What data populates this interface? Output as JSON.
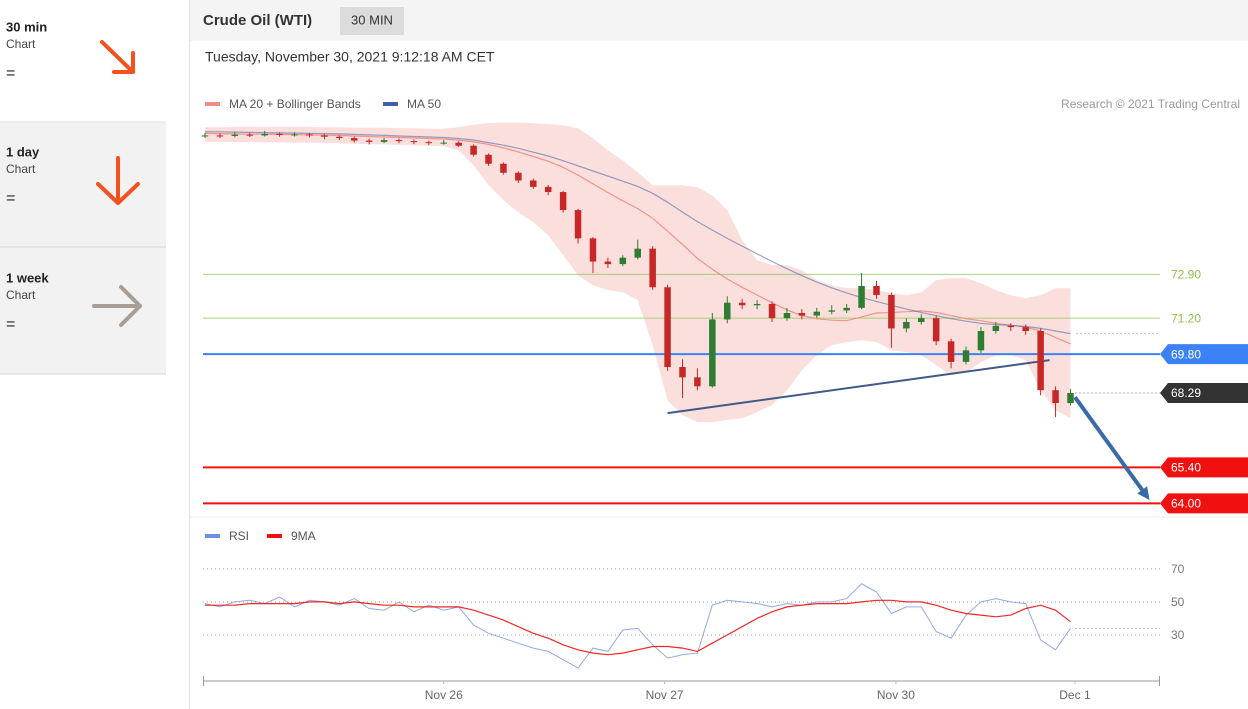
{
  "sidebar": [
    {
      "title": "30 min",
      "subtitle": "Chart",
      "signal": "="
    },
    {
      "title": "1 day",
      "subtitle": "Chart",
      "signal": "="
    },
    {
      "title": "1 week",
      "subtitle": "Chart",
      "signal": "="
    }
  ],
  "chart_data": {
    "type": "candlestick",
    "title": "Crude Oil (WTI)",
    "timeframe": "30 MIN",
    "subtitle": "Tuesday, November 30, 2021 9:12:18 AM CET",
    "source": "Research © 2021 Trading Central",
    "xlim": [
      0,
      64
    ],
    "xticks": [
      {
        "value": 16,
        "label": "Nov 26"
      },
      {
        "value": 30.8,
        "label": "Nov 27"
      },
      {
        "value": 46.3,
        "label": "Nov 30"
      },
      {
        "value": 58.3,
        "label": "Dec 1"
      }
    ],
    "ylim": [
      63.55,
      78.9
    ],
    "up_color": "#2e7d32",
    "down_color": "#c62828",
    "open": [
      78.28,
      78.3,
      78.28,
      78.33,
      78.3,
      78.36,
      78.32,
      78.34,
      78.3,
      78.25,
      78.2,
      78.1,
      78.05,
      78.12,
      78.08,
      78.04,
      78.0,
      78.02,
      77.9,
      77.55,
      77.2,
      76.85,
      76.55,
      76.3,
      76.1,
      75.4,
      74.3,
      73.4,
      73.3,
      73.55,
      73.9,
      72.4,
      69.3,
      68.9,
      68.55,
      71.15,
      71.8,
      71.7,
      71.75,
      71.2,
      71.4,
      71.3,
      71.45,
      71.5,
      71.6,
      72.45,
      72.1,
      70.8,
      71.05,
      71.2,
      70.3,
      69.5,
      69.95,
      70.7,
      70.9,
      70.85,
      70.7,
      68.4,
      67.9
    ],
    "high": [
      78.4,
      78.38,
      78.42,
      78.4,
      78.48,
      78.42,
      78.42,
      78.4,
      78.35,
      78.3,
      78.26,
      78.18,
      78.2,
      78.18,
      78.14,
      78.1,
      78.12,
      78.08,
      77.95,
      77.6,
      77.25,
      76.9,
      76.62,
      76.38,
      76.15,
      75.45,
      74.35,
      73.55,
      73.65,
      74.25,
      74.0,
      72.5,
      69.6,
      69.25,
      71.4,
      72.05,
      71.95,
      71.9,
      71.85,
      71.6,
      71.55,
      71.6,
      71.7,
      71.75,
      72.95,
      72.65,
      72.2,
      71.2,
      71.35,
      71.3,
      70.4,
      70.1,
      70.85,
      71.05,
      71.0,
      70.95,
      70.8,
      68.55,
      68.45
    ],
    "low": [
      78.2,
      78.2,
      78.22,
      78.24,
      78.26,
      78.25,
      78.26,
      78.22,
      78.15,
      78.12,
      78.02,
      77.95,
      78.0,
      78.0,
      77.96,
      77.92,
      77.94,
      77.85,
      77.48,
      77.12,
      76.78,
      76.45,
      76.22,
      75.98,
      75.3,
      74.1,
      72.95,
      73.15,
      73.22,
      73.48,
      72.3,
      69.15,
      68.1,
      68.4,
      68.5,
      71.0,
      71.55,
      71.55,
      71.05,
      71.1,
      71.15,
      71.2,
      71.35,
      71.4,
      71.55,
      71.95,
      70.05,
      70.65,
      70.95,
      70.15,
      69.25,
      69.4,
      69.85,
      70.6,
      70.7,
      70.55,
      68.2,
      67.35,
      67.8
    ],
    "close": [
      78.3,
      78.28,
      78.33,
      78.3,
      78.36,
      78.32,
      78.34,
      78.3,
      78.25,
      78.2,
      78.1,
      78.05,
      78.12,
      78.08,
      78.04,
      78.0,
      78.02,
      77.9,
      77.55,
      77.2,
      76.85,
      76.55,
      76.3,
      76.1,
      75.4,
      74.3,
      73.4,
      73.3,
      73.55,
      73.9,
      72.4,
      69.3,
      68.9,
      68.55,
      71.15,
      71.8,
      71.7,
      71.75,
      71.2,
      71.4,
      71.3,
      71.45,
      71.5,
      71.6,
      72.45,
      72.1,
      70.8,
      71.05,
      71.2,
      70.3,
      69.5,
      69.95,
      70.7,
      70.9,
      70.85,
      70.7,
      68.4,
      67.9,
      68.29
    ],
    "indicators": [
      {
        "name": "MA 20 + Bollinger Bands",
        "color": "#f28b82",
        "values": [
          78.38,
          78.37,
          78.36,
          78.35,
          78.35,
          78.34,
          78.33,
          78.32,
          78.31,
          78.3,
          78.28,
          78.26,
          78.24,
          78.22,
          78.2,
          78.18,
          78.16,
          78.12,
          78.05,
          77.95,
          77.82,
          77.66,
          77.48,
          77.3,
          77.06,
          76.76,
          76.42,
          76.08,
          75.76,
          75.46,
          75.08,
          74.58,
          74.06,
          73.52,
          73.1,
          72.72,
          72.4,
          72.1,
          71.8,
          71.52,
          71.3,
          71.18,
          71.12,
          71.1,
          71.25,
          71.4,
          71.42,
          71.45,
          71.48,
          71.42,
          71.3,
          71.18,
          71.1,
          71.0,
          70.92,
          70.85,
          70.7,
          70.45,
          70.2
        ],
        "upper": [
          78.62,
          78.62,
          78.63,
          78.63,
          78.64,
          78.64,
          78.64,
          78.63,
          78.62,
          78.62,
          78.6,
          78.6,
          78.6,
          78.58,
          78.58,
          78.56,
          78.56,
          78.62,
          78.72,
          78.78,
          78.8,
          78.8,
          78.78,
          78.74,
          78.69,
          78.58,
          78.19,
          77.72,
          77.33,
          76.87,
          76.36,
          76.36,
          76.36,
          76.29,
          75.97,
          75.39,
          74.23,
          73.45,
          73.26,
          73.26,
          73.06,
          72.67,
          72.48,
          72.36,
          72.36,
          72.29,
          72.17,
          72.09,
          72.2,
          72.67,
          72.75,
          72.75,
          72.56,
          72.29,
          72.09,
          71.97,
          72.09,
          72.36,
          72.36
        ],
        "lower": [
          78.05,
          78.05,
          78.04,
          78.04,
          78.03,
          78.03,
          78.02,
          78.02,
          78.01,
          78.0,
          77.98,
          77.96,
          77.95,
          77.93,
          77.92,
          77.9,
          77.88,
          77.72,
          77.14,
          76.36,
          75.78,
          75.31,
          74.93,
          74.42,
          73.65,
          72.87,
          72.48,
          72.29,
          72.21,
          71.9,
          70.15,
          68.01,
          67.43,
          67.16,
          67.16,
          67.24,
          67.31,
          67.55,
          67.82,
          68.4,
          69.18,
          69.76,
          70.15,
          70.27,
          70.34,
          70.27,
          69.96,
          69.88,
          69.76,
          69.37,
          68.98,
          69.1,
          69.49,
          69.76,
          69.76,
          69.57,
          68.4,
          67.63,
          67.31
        ]
      },
      {
        "name": "MA 50",
        "color": "#3f5ea8",
        "values": [
          78.45,
          78.44,
          78.43,
          78.42,
          78.41,
          78.4,
          78.39,
          78.38,
          78.37,
          78.36,
          78.34,
          78.32,
          78.3,
          78.28,
          78.26,
          78.24,
          78.22,
          78.18,
          78.12,
          78.02,
          77.92,
          77.8,
          77.65,
          77.5,
          77.32,
          77.12,
          76.92,
          76.72,
          76.52,
          76.32,
          76.05,
          75.7,
          75.32,
          74.95,
          74.62,
          74.3,
          74.0,
          73.7,
          73.4,
          73.12,
          72.85,
          72.6,
          72.38,
          72.18,
          72.0,
          71.85,
          71.7,
          71.55,
          71.42,
          71.3,
          71.18,
          71.08,
          71.0,
          70.95,
          70.92,
          70.88,
          70.8,
          70.7,
          70.6
        ]
      }
    ],
    "levels": [
      {
        "value": 72.9,
        "label": "72.90",
        "color": "#8bc34a",
        "label_box": false
      },
      {
        "value": 71.2,
        "label": "71.20",
        "color": "#8bc34a",
        "label_box": false
      },
      {
        "value": 69.8,
        "label": "69.80",
        "color": "#3b82f6",
        "label_box": true
      },
      {
        "value": 65.4,
        "label": "65.40",
        "color": "#f01010",
        "label_box": true
      },
      {
        "value": 64,
        "label": "64.00",
        "color": "#f01010",
        "label_box": true
      }
    ],
    "last_price": 68.29,
    "last_price_color": "#333333",
    "trendline": {
      "x": [
        31,
        56.6
      ],
      "values": [
        67.51,
        69.57
      ],
      "color": "#3f5a8a"
    },
    "arrow": {
      "x": [
        58.3,
        63.3
      ],
      "values": [
        68.13,
        64.13
      ],
      "color": "#3a6aa8"
    },
    "rsi": {
      "ylim": [
        2.7,
        84.5
      ],
      "yticks": [
        30,
        50,
        70
      ],
      "series": [
        {
          "name": "RSI",
          "color": "#6b8fe0",
          "values": [
            49,
            47,
            50,
            51,
            49,
            53,
            47,
            51,
            50,
            48,
            52,
            46,
            45,
            50,
            44,
            48,
            45,
            47,
            36,
            31,
            28,
            25,
            22,
            20,
            15,
            10,
            22,
            20,
            33,
            34,
            24,
            16,
            18,
            19,
            48,
            51,
            50,
            49,
            47,
            49,
            48,
            50,
            50,
            52,
            61,
            56,
            43,
            47,
            47,
            32,
            28,
            42,
            50,
            52,
            50,
            49,
            27,
            21,
            34
          ]
        },
        {
          "name": "9MA",
          "color": "#f01010",
          "values": [
            48,
            48,
            48,
            49,
            49,
            49,
            49,
            50,
            50,
            49,
            50,
            49,
            48,
            48,
            47,
            47,
            47,
            47,
            45,
            42,
            39,
            35,
            31,
            28,
            24,
            21,
            19,
            18,
            19,
            21,
            23,
            23,
            22,
            20,
            25,
            30,
            35,
            40,
            44,
            47,
            48,
            49,
            49,
            49,
            50,
            51,
            51,
            50,
            50,
            48,
            45,
            43,
            42,
            41,
            42,
            46,
            48,
            45,
            38
          ]
        }
      ]
    }
  }
}
